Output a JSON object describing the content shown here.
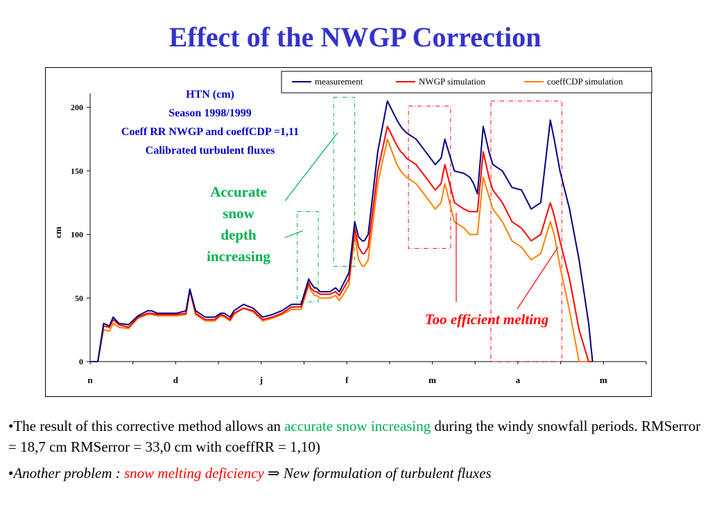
{
  "slide": {
    "title": "Effect of the NWGP Correction"
  },
  "chart_data": {
    "type": "line",
    "ylabel": "cm",
    "ylim": [
      0,
      200
    ],
    "yticks": [
      0,
      50,
      100,
      150,
      200
    ],
    "xticks": [
      "n",
      "d",
      "j",
      "f",
      "m",
      "a",
      "m"
    ],
    "legend_position": "top-right",
    "info_lines": [
      "HTN (cm)",
      "Season 1998/1999",
      "Coeff RR NWGP  and coeffCDP =1,11",
      "Calibrated turbulent fluxes"
    ],
    "x": [
      0,
      4,
      7,
      10,
      12,
      15,
      20,
      25,
      30,
      32,
      35,
      40,
      45,
      50,
      52,
      55,
      60,
      65,
      68,
      70,
      73,
      75,
      80,
      85,
      90,
      95,
      100,
      105,
      110,
      114,
      115,
      117,
      118,
      120,
      122,
      123,
      125,
      128,
      130,
      135,
      138,
      140,
      142,
      143,
      145,
      150,
      155,
      160,
      162,
      163,
      165,
      170,
      175,
      180,
      183,
      185,
      190,
      195,
      198,
      200,
      202,
      205,
      208,
      210,
      215,
      220,
      225,
      230,
      235,
      240,
      242,
      245,
      250,
      255,
      260,
      262
    ],
    "series": [
      {
        "name": "measurement",
        "color": "#000080",
        "values": [
          0,
          0,
          30,
          28,
          35,
          30,
          29,
          36,
          40,
          40,
          38,
          38,
          38,
          40,
          57,
          40,
          35,
          35,
          38,
          38,
          35,
          40,
          45,
          42,
          35,
          37,
          40,
          45,
          45,
          65,
          62,
          58,
          58,
          55,
          55,
          55,
          55,
          58,
          55,
          70,
          110,
          98,
          95,
          95,
          100,
          165,
          205,
          190,
          185,
          183,
          180,
          175,
          165,
          155,
          160,
          175,
          150,
          148,
          145,
          140,
          132,
          185,
          165,
          155,
          150,
          137,
          135,
          120,
          125,
          190,
          175,
          150,
          120,
          80,
          30,
          0
        ]
      },
      {
        "name": "NWGP simulation",
        "color": "#ff0000",
        "values": [
          0,
          0,
          28,
          27,
          33,
          29,
          27,
          35,
          38,
          38,
          37,
          37,
          37,
          38,
          56,
          38,
          33,
          33,
          37,
          36,
          33,
          38,
          42,
          40,
          33,
          35,
          38,
          43,
          43,
          62,
          58,
          55,
          55,
          53,
          53,
          53,
          53,
          55,
          52,
          65,
          105,
          90,
          85,
          85,
          90,
          150,
          185,
          170,
          165,
          164,
          160,
          155,
          145,
          135,
          140,
          155,
          125,
          120,
          118,
          118,
          118,
          165,
          145,
          135,
          125,
          110,
          105,
          95,
          100,
          125,
          115,
          95,
          65,
          25,
          0,
          0
        ]
      },
      {
        "name": "coeffCDP simulation",
        "color": "#ff8000",
        "values": [
          0,
          0,
          25,
          24,
          30,
          27,
          26,
          34,
          37,
          37,
          36,
          36,
          36,
          37,
          56,
          37,
          32,
          32,
          36,
          35,
          32,
          37,
          42,
          39,
          32,
          34,
          37,
          41,
          41,
          60,
          56,
          52,
          52,
          50,
          50,
          50,
          50,
          52,
          48,
          60,
          100,
          80,
          75,
          75,
          80,
          140,
          175,
          155,
          150,
          148,
          145,
          140,
          130,
          120,
          125,
          140,
          110,
          105,
          100,
          100,
          100,
          145,
          130,
          120,
          110,
          95,
          90,
          80,
          85,
          110,
          100,
          75,
          40,
          0,
          0,
          0
        ]
      }
    ],
    "annotations": {
      "accurate": [
        "Accurate",
        "snow",
        "depth",
        "increasing"
      ],
      "melting": "Too efficient melting"
    }
  },
  "bullets": {
    "b1_pre": "•The result of this corrective method allows an ",
    "b1_hl": "accurate snow increasing",
    "b1_post": " during the windy snowfall periods.        RMSerror = 18,7 cm        RMSerror = 33,0 cm  with coeffRR = 1,10)",
    "b2_pre": "•",
    "b2_it1": "Another problem : ",
    "b2_red": "snow melting deficiency",
    "b2_arrow": "  ⇒  ",
    "b2_it2": "New formulation of turbulent fluxes"
  }
}
